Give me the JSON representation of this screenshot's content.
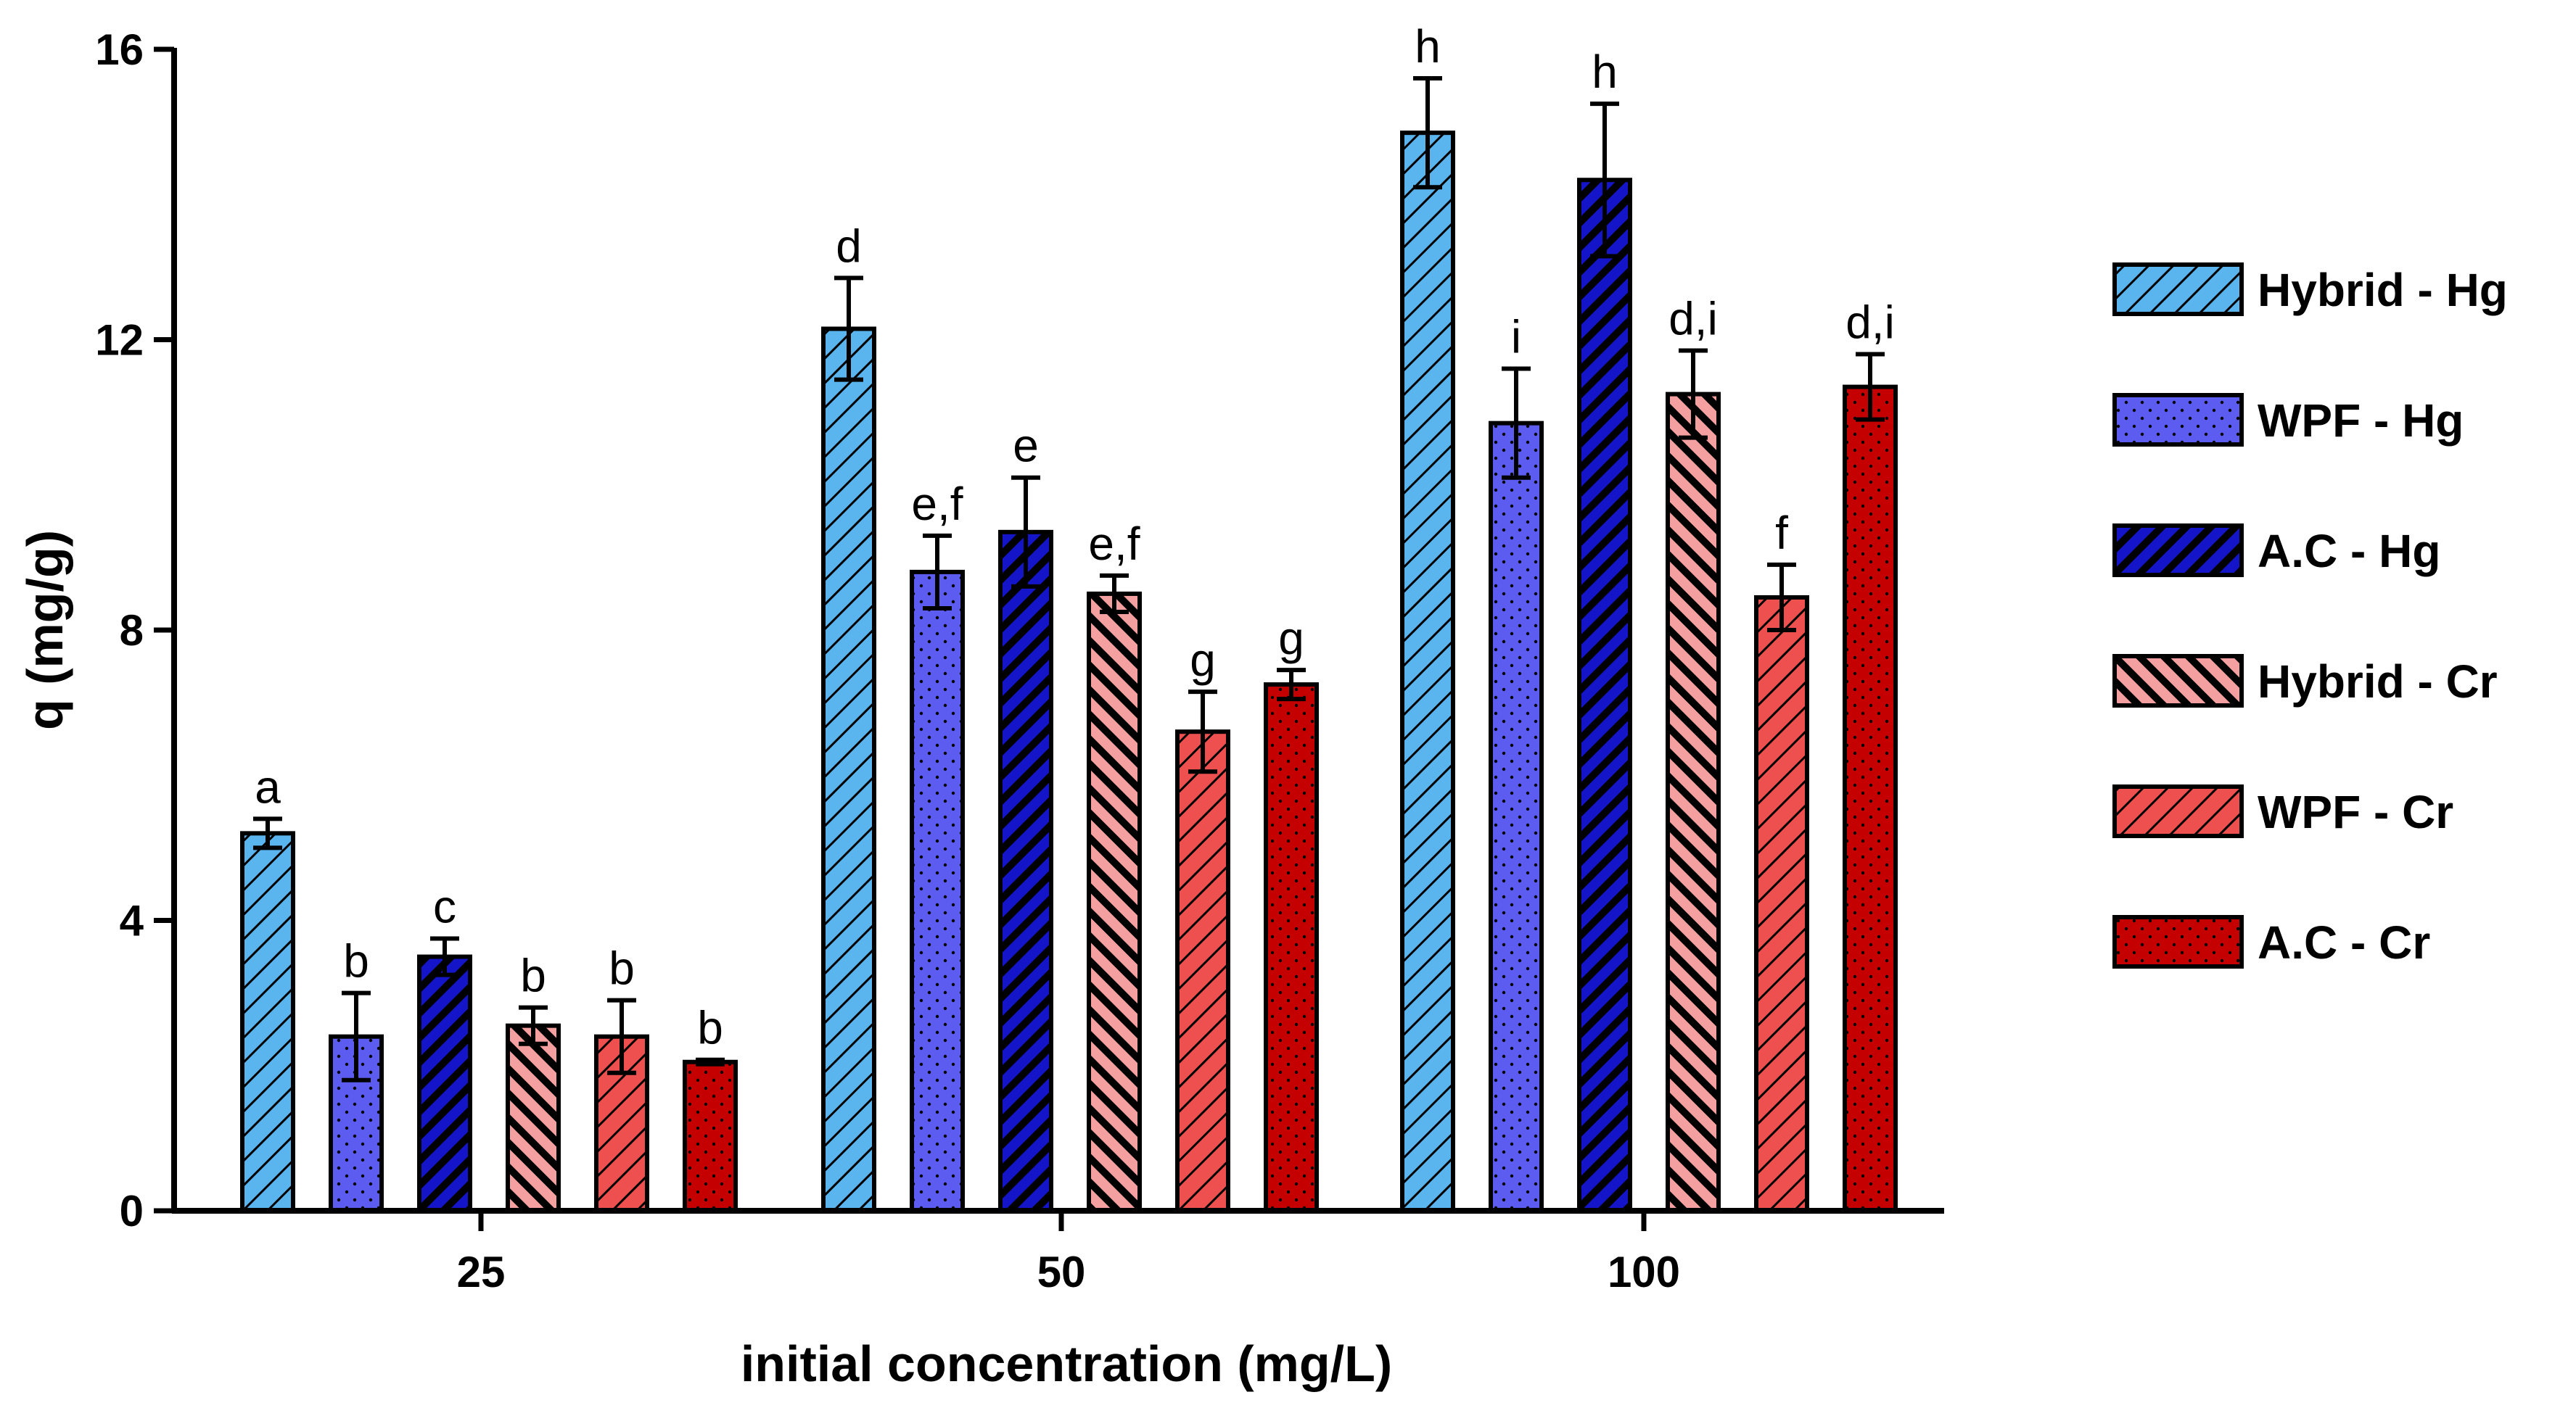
{
  "chart_data": {
    "type": "bar",
    "title": "",
    "xlabel": "initial concentration (mg/L)",
    "ylabel": "q (mg/g)",
    "ylim": [
      0,
      16
    ],
    "yticks": [
      0,
      4,
      8,
      12,
      16
    ],
    "categories": [
      "25",
      "50",
      "100"
    ],
    "legend_position": "right",
    "series": [
      {
        "name": "Hybrid - Hg",
        "values": [
          5.2,
          12.15,
          14.85
        ],
        "errors": [
          0.2,
          0.7,
          0.75
        ],
        "letters": [
          "a",
          "d",
          "h"
        ],
        "color": "#5AB4EE",
        "pattern": "diag-thin"
      },
      {
        "name": "WPF - Hg",
        "values": [
          2.4,
          8.8,
          10.85
        ],
        "errors": [
          0.6,
          0.5,
          0.75
        ],
        "letters": [
          "b",
          "e,f",
          "i"
        ],
        "color": "#5C5CF0",
        "pattern": "dots"
      },
      {
        "name": "A.C - Hg",
        "values": [
          3.5,
          9.35,
          14.2
        ],
        "errors": [
          0.25,
          0.75,
          1.05
        ],
        "letters": [
          "c",
          "e",
          "h"
        ],
        "color": "#1414C8",
        "pattern": "diag-thick"
      },
      {
        "name": "Hybrid - Cr",
        "values": [
          2.55,
          8.5,
          11.25
        ],
        "errors": [
          0.25,
          0.25,
          0.6
        ],
        "letters": [
          "b",
          "e,f",
          "d,i"
        ],
        "color": "#F5A0A0",
        "pattern": "back-diag-thick"
      },
      {
        "name": "WPF - Cr",
        "values": [
          2.4,
          6.6,
          8.45
        ],
        "errors": [
          0.5,
          0.55,
          0.45
        ],
        "letters": [
          "b",
          "g",
          "f"
        ],
        "color": "#EE5050",
        "pattern": "diag-thin"
      },
      {
        "name": "A.C - Cr",
        "values": [
          2.05,
          7.25,
          11.35
        ],
        "errors": [
          0.03,
          0.2,
          0.45
        ],
        "letters": [
          "b",
          "g",
          "d,i"
        ],
        "color": "#C40000",
        "pattern": "dots"
      }
    ]
  }
}
